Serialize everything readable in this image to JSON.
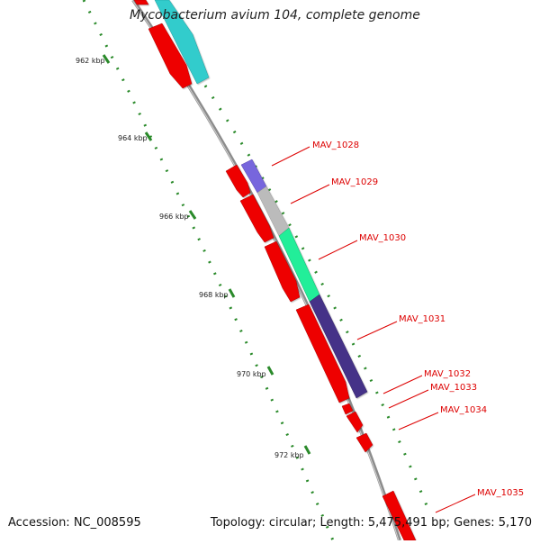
{
  "title": "Mycobacterium avium 104, complete genome",
  "footer": {
    "accession": "Accession: NC_008595",
    "summary": "Topology: circular; Length: 5,475,491 bp; Genes: 5,170"
  },
  "kbp_labels": [
    "962 kbp",
    "964 kbp",
    "966 kbp",
    "968 kbp",
    "970 kbp",
    "972 kbp"
  ],
  "gene_labels": [
    "MAV_1028",
    "MAV_1029",
    "MAV_1030",
    "MAV_1031",
    "MAV_1032",
    "MAV_1033",
    "MAV_1034",
    "MAV_1035"
  ],
  "colors": {
    "background": "#ffffff",
    "backbone": "#888888",
    "tick_dots": "#2a8a2a",
    "red_gene": "#ee0000",
    "cyan_gene": "#33cccc",
    "purple_gene": "#7766dd",
    "gray_gene": "#bbbbbb",
    "green_gene": "#22ee99",
    "navy_gene": "#443388",
    "label_text": "#dd0000"
  }
}
